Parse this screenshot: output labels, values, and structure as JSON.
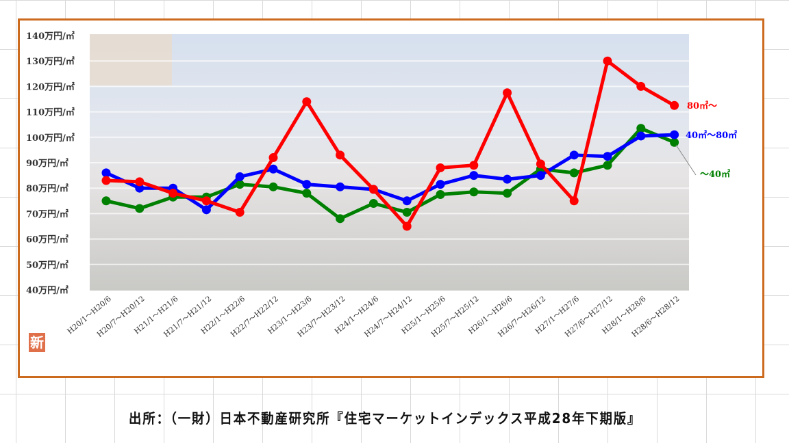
{
  "chart_data": {
    "type": "line",
    "title": "",
    "xlabel": "",
    "ylabel": "",
    "ylim": [
      40,
      140
    ],
    "y_ticks": [
      "40万円/㎡",
      "50万円/㎡",
      "60万円/㎡",
      "70万円/㎡",
      "80万円/㎡",
      "90万円/㎡",
      "100万円/㎡",
      "110万円/㎡",
      "120万円/㎡",
      "130万円/㎡",
      "140万円/㎡"
    ],
    "y_tick_values": [
      40,
      50,
      60,
      70,
      80,
      90,
      100,
      110,
      120,
      130,
      140
    ],
    "grid": true,
    "legend": "right",
    "categories": [
      "H20/1～H20/6",
      "H20/7～H20/12",
      "H21/1～H21/6",
      "H21/7～H21/12",
      "H22/1～H22/6",
      "H22/7～H22/12",
      "H23/1～H23/6",
      "H23/7～H23/12",
      "H24/1～H24/6",
      "H24/7～H24/12",
      "H25/1～H25/6",
      "H25/7～H25/12",
      "H26/1～H26/6",
      "H26/7～H26/12",
      "H27/1～H27/6",
      "H27/6～H27/12",
      "H28/1～H28/6",
      "H28/6～H28/12"
    ],
    "series": [
      {
        "name": "80㎡～",
        "color": "#ff0000",
        "values": [
          83,
          82.5,
          78,
          75,
          70.5,
          92,
          114,
          93,
          79.5,
          65,
          88,
          89,
          117.5,
          89.5,
          75,
          130,
          120,
          112.5
        ]
      },
      {
        "name": "40㎡～80㎡",
        "color": "#0000ff",
        "values": [
          86,
          80,
          80,
          71.5,
          84.5,
          87.5,
          81.5,
          80.5,
          79.5,
          75,
          81.5,
          85,
          83.5,
          85,
          93,
          92.5,
          100.5,
          101
        ]
      },
      {
        "name": "～40㎡",
        "color": "#008000",
        "values": [
          75,
          72,
          76.5,
          76.5,
          81.5,
          80.5,
          78,
          68,
          74,
          70.5,
          77.5,
          78.5,
          78,
          87.5,
          86,
          89,
          103.5,
          98
        ]
      }
    ]
  },
  "badge": "新",
  "footer": "出所：（一財）日本不動産研究所『住宅マーケットインデックス平成28年下期版』"
}
